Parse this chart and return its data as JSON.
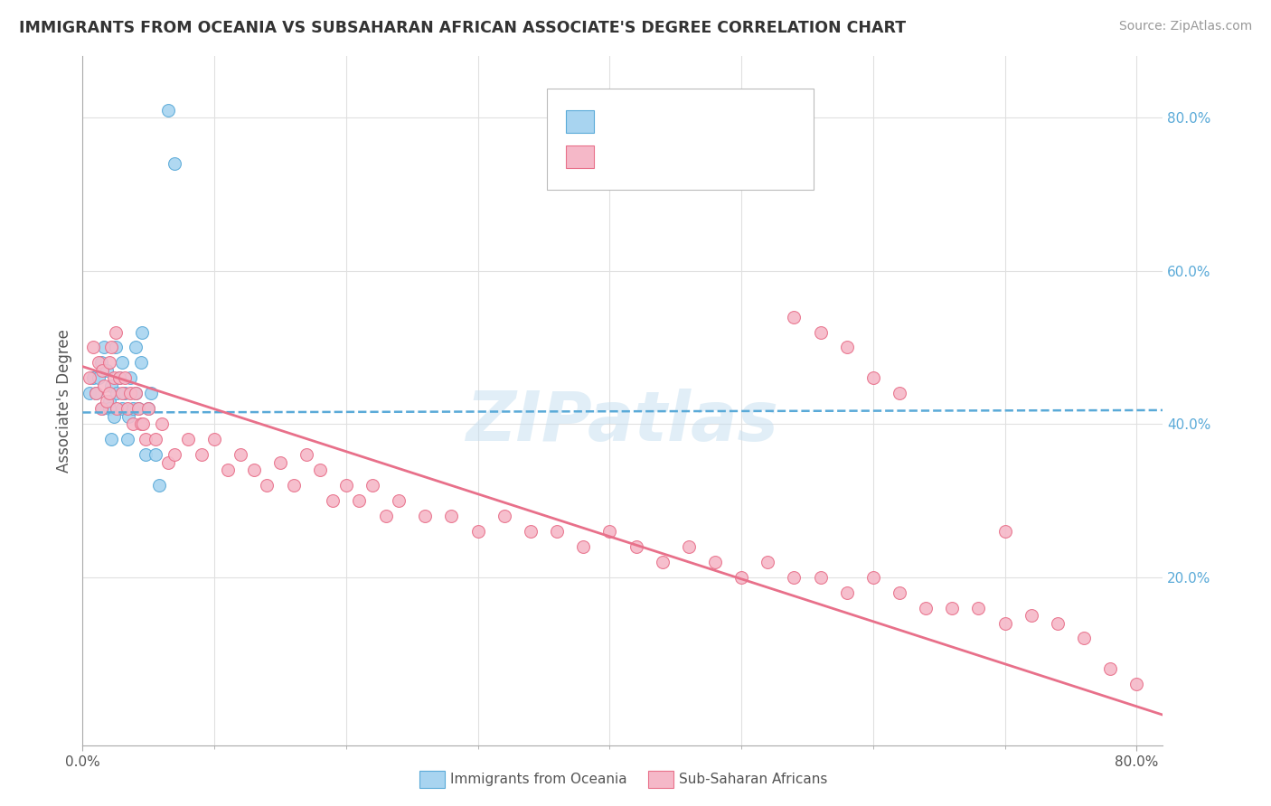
{
  "title": "IMMIGRANTS FROM OCEANIA VS SUBSAHARAN AFRICAN ASSOCIATE'S DEGREE CORRELATION CHART",
  "source": "Source: ZipAtlas.com",
  "ylabel": "Associate's Degree",
  "watermark": "ZIPatlas",
  "color_oceania": "#a8d4f0",
  "color_africa": "#f5b8c8",
  "line_color_oceania": "#5aaad8",
  "line_color_africa": "#e8708a",
  "background_color": "#ffffff",
  "grid_color": "#e0e0e0",
  "xlim": [
    0.0,
    0.82
  ],
  "ylim": [
    -0.02,
    0.88
  ],
  "oceania_x": [
    0.005,
    0.008,
    0.01,
    0.012,
    0.014,
    0.015,
    0.016,
    0.018,
    0.02,
    0.02,
    0.022,
    0.022,
    0.024,
    0.025,
    0.026,
    0.028,
    0.03,
    0.03,
    0.032,
    0.034,
    0.035,
    0.036,
    0.038,
    0.04,
    0.04,
    0.042,
    0.044,
    0.045,
    0.048,
    0.05,
    0.052,
    0.055,
    0.058,
    0.065,
    0.07
  ],
  "oceania_y": [
    0.44,
    0.46,
    0.44,
    0.46,
    0.48,
    0.42,
    0.5,
    0.47,
    0.43,
    0.42,
    0.45,
    0.38,
    0.41,
    0.5,
    0.44,
    0.46,
    0.48,
    0.42,
    0.44,
    0.38,
    0.41,
    0.46,
    0.42,
    0.44,
    0.5,
    0.42,
    0.48,
    0.52,
    0.36,
    0.42,
    0.44,
    0.36,
    0.32,
    0.81,
    0.74
  ],
  "africa_x": [
    0.005,
    0.008,
    0.01,
    0.012,
    0.014,
    0.015,
    0.016,
    0.018,
    0.02,
    0.02,
    0.022,
    0.024,
    0.025,
    0.026,
    0.028,
    0.03,
    0.032,
    0.034,
    0.036,
    0.038,
    0.04,
    0.042,
    0.044,
    0.046,
    0.048,
    0.05,
    0.055,
    0.06,
    0.065,
    0.07,
    0.08,
    0.09,
    0.1,
    0.11,
    0.12,
    0.13,
    0.14,
    0.15,
    0.16,
    0.17,
    0.18,
    0.19,
    0.2,
    0.21,
    0.22,
    0.23,
    0.24,
    0.26,
    0.28,
    0.3,
    0.32,
    0.34,
    0.36,
    0.38,
    0.4,
    0.42,
    0.44,
    0.46,
    0.48,
    0.5,
    0.52,
    0.54,
    0.56,
    0.58,
    0.6,
    0.62,
    0.64,
    0.66,
    0.68,
    0.7,
    0.54,
    0.56,
    0.58,
    0.6,
    0.62,
    0.7,
    0.72,
    0.74,
    0.76,
    0.78,
    0.8
  ],
  "africa_y": [
    0.46,
    0.5,
    0.44,
    0.48,
    0.42,
    0.47,
    0.45,
    0.43,
    0.48,
    0.44,
    0.5,
    0.46,
    0.52,
    0.42,
    0.46,
    0.44,
    0.46,
    0.42,
    0.44,
    0.4,
    0.44,
    0.42,
    0.4,
    0.4,
    0.38,
    0.42,
    0.38,
    0.4,
    0.35,
    0.36,
    0.38,
    0.36,
    0.38,
    0.34,
    0.36,
    0.34,
    0.32,
    0.35,
    0.32,
    0.36,
    0.34,
    0.3,
    0.32,
    0.3,
    0.32,
    0.28,
    0.3,
    0.28,
    0.28,
    0.26,
    0.28,
    0.26,
    0.26,
    0.24,
    0.26,
    0.24,
    0.22,
    0.24,
    0.22,
    0.2,
    0.22,
    0.2,
    0.2,
    0.18,
    0.2,
    0.18,
    0.16,
    0.16,
    0.16,
    0.14,
    0.54,
    0.52,
    0.5,
    0.46,
    0.44,
    0.26,
    0.15,
    0.14,
    0.12,
    0.08,
    0.06
  ],
  "oceania_line_x0": 0.0,
  "oceania_line_x1": 0.82,
  "oceania_line_y0": 0.415,
  "oceania_line_y1": 0.418,
  "africa_line_x0": 0.0,
  "africa_line_x1": 0.82,
  "africa_line_y0": 0.475,
  "africa_line_y1": 0.02
}
